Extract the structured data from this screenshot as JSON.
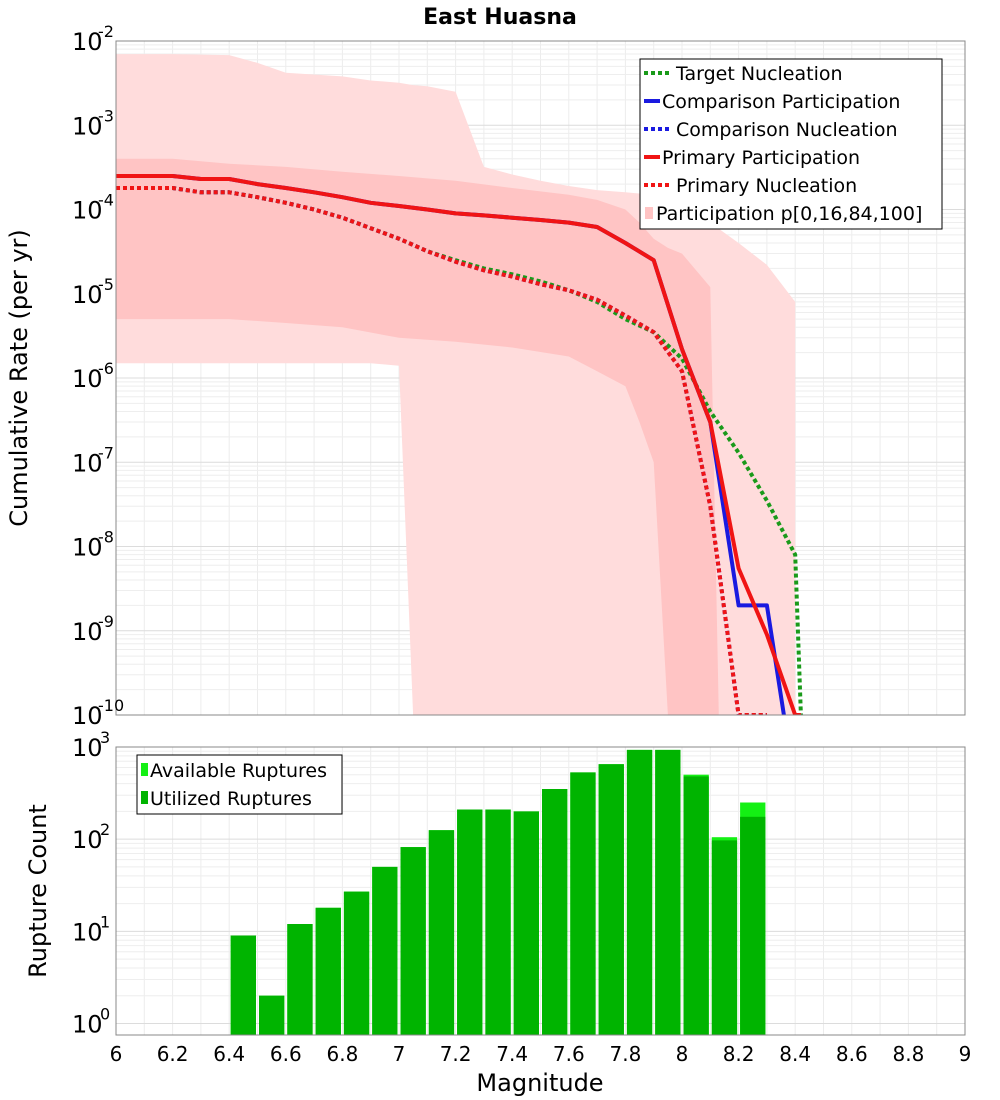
{
  "chart_data": [
    {
      "type": "line",
      "title": "East Huasna",
      "xlabel": "",
      "ylabel": "Cumulative Rate (per yr)",
      "xscale": "linear",
      "yscale": "log",
      "xlim": [
        6,
        9
      ],
      "ylim": [
        1e-10,
        0.01
      ],
      "y_ticks": [
        {
          "base": "10",
          "exp": "-10",
          "value": 1e-10
        },
        {
          "base": "10",
          "exp": "-9",
          "value": 1e-09
        },
        {
          "base": "10",
          "exp": "-8",
          "value": 1e-08
        },
        {
          "base": "10",
          "exp": "-7",
          "value": 1e-07
        },
        {
          "base": "10",
          "exp": "-6",
          "value": 1e-06
        },
        {
          "base": "10",
          "exp": "-5",
          "value": 1e-05
        },
        {
          "base": "10",
          "exp": "-4",
          "value": 0.0001
        },
        {
          "base": "10",
          "exp": "-3",
          "value": 0.001
        },
        {
          "base": "10",
          "exp": "-2",
          "value": 0.01
        }
      ],
      "grid": true,
      "legend_position": "top-right",
      "legend": [
        "Target Nucleation",
        "Comparison Participation",
        "Comparison Nucleation",
        "Primary Participation",
        "Primary Nucleation",
        "Participation p[0,16,84,100]"
      ],
      "bands": [
        {
          "name": "Participation p[0,100]",
          "color": "#ffdcdc",
          "x": [
            6.0,
            6.2,
            6.4,
            6.5,
            6.6,
            6.8,
            6.9,
            7.0,
            7.05,
            7.1,
            7.2,
            7.3,
            7.4,
            7.5,
            7.6,
            7.7,
            7.8,
            7.9,
            8.0,
            8.1,
            8.2,
            8.3,
            8.4
          ],
          "upper": [
            0.007,
            0.007,
            0.0068,
            0.0055,
            0.0042,
            0.0038,
            0.0034,
            0.0032,
            0.003,
            0.0029,
            0.0025,
            0.00032,
            0.00026,
            0.00022,
            0.00019,
            0.00017,
            0.00016,
            0.00015,
            0.00012,
            7e-05,
            4e-05,
            2.2e-05,
            8e-06
          ],
          "lower": [
            1.5e-06,
            1.5e-06,
            1.5e-06,
            1.5e-06,
            1.5e-06,
            1.5e-06,
            1.5e-06,
            1.4e-06,
            1e-10,
            1e-10,
            1e-10,
            1e-10,
            1e-10,
            1e-10,
            1e-10,
            1e-10,
            1e-10,
            1e-10,
            1e-10,
            1e-10,
            1e-10,
            1e-10,
            1e-10
          ]
        },
        {
          "name": "Participation p[16,84]",
          "color": "#ffc4c4",
          "x": [
            6.0,
            6.2,
            6.4,
            6.6,
            6.8,
            7.0,
            7.2,
            7.4,
            7.6,
            7.7,
            7.8,
            7.85,
            7.9,
            7.95,
            8.0,
            8.1,
            8.13
          ],
          "upper": [
            0.0004,
            0.0004,
            0.00035,
            0.00032,
            0.00028,
            0.00025,
            0.00022,
            0.00018,
            0.00015,
            0.00013,
            0.0001,
            7e-05,
            4.5e-05,
            3.5e-05,
            3e-05,
            1.2e-05,
            1e-10
          ],
          "lower": [
            5e-06,
            5e-06,
            5e-06,
            4.5e-06,
            4e-06,
            3e-06,
            2.7e-06,
            2.3e-06,
            1.8e-06,
            1.2e-06,
            8e-07,
            3e-07,
            1e-07,
            1e-10,
            1e-10,
            1e-10,
            1e-10
          ]
        }
      ],
      "series": [
        {
          "name": "Target Nucleation",
          "color": "#1a9a1a",
          "dash": "dot",
          "x": [
            6.0,
            6.2,
            6.3,
            6.4,
            6.5,
            6.6,
            6.7,
            6.8,
            6.9,
            7.0,
            7.1,
            7.2,
            7.3,
            7.4,
            7.5,
            7.6,
            7.7,
            7.8,
            7.9,
            8.0,
            8.1,
            8.2,
            8.3,
            8.4,
            8.42
          ],
          "y": [
            0.00018,
            0.00018,
            0.00016,
            0.00016,
            0.00014,
            0.00012,
            0.0001,
            8e-05,
            6e-05,
            4.5e-05,
            3.2e-05,
            2.5e-05,
            2e-05,
            1.7e-05,
            1.4e-05,
            1.1e-05,
            8e-06,
            5e-06,
            3.5e-06,
            1.7e-06,
            4e-07,
            1.3e-07,
            3.5e-08,
            8e-09,
            1e-10
          ]
        },
        {
          "name": "Comparison Participation",
          "color": "#1a1ae0",
          "dash": "solid",
          "x": [
            6.0,
            6.2,
            6.3,
            6.4,
            6.5,
            6.6,
            6.7,
            6.8,
            6.9,
            7.0,
            7.1,
            7.2,
            7.3,
            7.4,
            7.5,
            7.6,
            7.7,
            7.8,
            7.9,
            8.0,
            8.1,
            8.2,
            8.3,
            8.36
          ],
          "y": [
            0.00025,
            0.00025,
            0.00023,
            0.00023,
            0.0002,
            0.00018,
            0.00016,
            0.00014,
            0.00012,
            0.00011,
            0.0001,
            9e-05,
            8.5e-05,
            8e-05,
            7.5e-05,
            7e-05,
            6.2e-05,
            4e-05,
            2.5e-05,
            2.2e-06,
            3e-07,
            2e-09,
            2e-09,
            1e-10
          ]
        },
        {
          "name": "Comparison Nucleation",
          "color": "#1a1ae0",
          "dash": "dot",
          "x": [
            6.0,
            6.2,
            6.3,
            6.4,
            6.5,
            6.6,
            6.7,
            6.8,
            6.9,
            7.0,
            7.1,
            7.2,
            7.3,
            7.4,
            7.5,
            7.6,
            7.7,
            7.8,
            7.9,
            8.0,
            8.1,
            8.2,
            8.3
          ],
          "y": [
            0.00018,
            0.00018,
            0.00016,
            0.00016,
            0.00014,
            0.00012,
            0.0001,
            8e-05,
            6e-05,
            4.5e-05,
            3.2e-05,
            2.4e-05,
            1.9e-05,
            1.6e-05,
            1.3e-05,
            1.1e-05,
            8.5e-06,
            5.5e-06,
            3.5e-06,
            1.2e-06,
            3e-08,
            1e-10,
            1e-10
          ]
        },
        {
          "name": "Primary Participation",
          "color": "#f01414",
          "dash": "solid",
          "x": [
            6.0,
            6.2,
            6.3,
            6.4,
            6.5,
            6.6,
            6.7,
            6.8,
            6.9,
            7.0,
            7.1,
            7.2,
            7.3,
            7.4,
            7.5,
            7.6,
            7.7,
            7.8,
            7.9,
            8.0,
            8.1,
            8.2,
            8.3,
            8.4,
            8.42
          ],
          "y": [
            0.00025,
            0.00025,
            0.00023,
            0.00023,
            0.0002,
            0.00018,
            0.00016,
            0.00014,
            0.00012,
            0.00011,
            0.0001,
            9e-05,
            8.5e-05,
            8e-05,
            7.5e-05,
            7e-05,
            6.2e-05,
            4e-05,
            2.5e-05,
            2.2e-06,
            3e-07,
            5.5e-09,
            9e-10,
            1e-10,
            1e-10
          ]
        },
        {
          "name": "Primary Nucleation",
          "color": "#f01414",
          "dash": "dot",
          "x": [
            6.0,
            6.2,
            6.3,
            6.4,
            6.5,
            6.6,
            6.7,
            6.8,
            6.9,
            7.0,
            7.1,
            7.2,
            7.3,
            7.4,
            7.5,
            7.6,
            7.7,
            7.8,
            7.9,
            8.0,
            8.1,
            8.2,
            8.3
          ],
          "y": [
            0.00018,
            0.00018,
            0.00016,
            0.00016,
            0.00014,
            0.00012,
            0.0001,
            8e-05,
            6e-05,
            4.5e-05,
            3.2e-05,
            2.4e-05,
            1.9e-05,
            1.6e-05,
            1.3e-05,
            1.1e-05,
            8.5e-06,
            5.5e-06,
            3.5e-06,
            1.2e-06,
            3e-08,
            1e-10,
            1e-10
          ]
        }
      ]
    },
    {
      "type": "bar",
      "title": "",
      "xlabel": "Magnitude",
      "ylabel": "Rupture Count",
      "xscale": "linear",
      "yscale": "log",
      "xlim": [
        6,
        9
      ],
      "ylim": [
        0.75,
        1000
      ],
      "x_ticks": [
        "6",
        "6.2",
        "6.4",
        "6.6",
        "6.8",
        "7",
        "7.2",
        "7.4",
        "7.6",
        "7.8",
        "8",
        "8.2",
        "8.4",
        "8.6",
        "8.8",
        "9"
      ],
      "y_ticks": [
        {
          "base": "10",
          "exp": "0",
          "value": 1
        },
        {
          "base": "10",
          "exp": "1",
          "value": 10
        },
        {
          "base": "10",
          "exp": "2",
          "value": 100
        },
        {
          "base": "10",
          "exp": "3",
          "value": 1000
        }
      ],
      "grid": true,
      "legend_position": "top-left",
      "legend": [
        "Available Ruptures",
        "Utilized Ruptures"
      ],
      "bin_width": 0.1,
      "categories": [
        6.45,
        6.55,
        6.65,
        6.75,
        6.85,
        6.95,
        7.05,
        7.15,
        7.25,
        7.35,
        7.45,
        7.55,
        7.65,
        7.75,
        7.85,
        7.95,
        8.05,
        8.15,
        8.25
      ],
      "series": [
        {
          "name": "Available Ruptures",
          "color": "#14f014",
          "values": [
            9,
            2,
            12,
            18,
            27,
            50,
            82,
            125,
            210,
            210,
            200,
            350,
            530,
            650,
            930,
            930,
            500,
            105,
            250
          ]
        },
        {
          "name": "Utilized Ruptures",
          "color": "#00b400",
          "values": [
            9,
            2,
            12,
            18,
            27,
            50,
            82,
            125,
            210,
            210,
            200,
            350,
            530,
            650,
            930,
            930,
            480,
            97,
            175
          ]
        }
      ]
    }
  ]
}
